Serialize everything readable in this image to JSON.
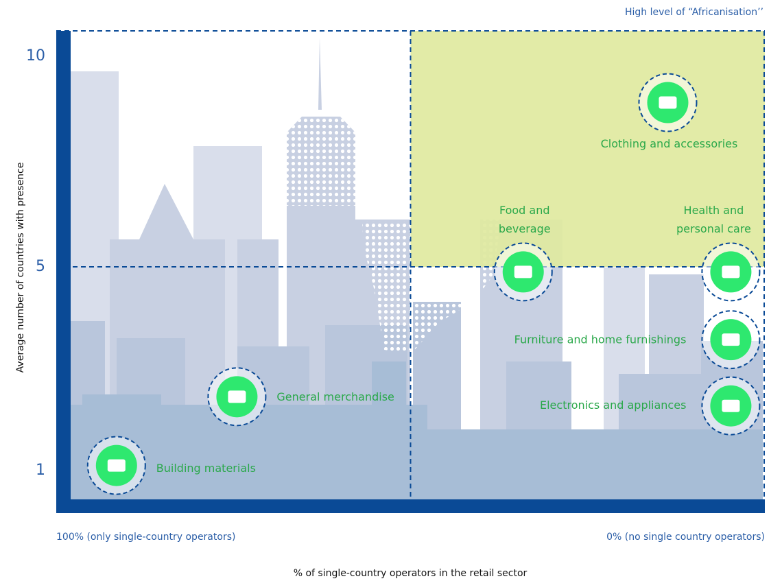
{
  "chart_data": {
    "type": "scatter",
    "annotation": "High level of “Africanisation’’",
    "y_label": "Average number of countries with presence",
    "x_label": "% of single-country operators in the retail sector",
    "xlim": [
      100,
      0
    ],
    "xticks": [
      {
        "value": 100,
        "label": "100% (only single-country operators)"
      },
      {
        "value": 0,
        "label": "0% (no single country operators)"
      }
    ],
    "ylim": [
      0,
      11
    ],
    "yticks": [
      1,
      5,
      10
    ],
    "dividers": {
      "x": 50,
      "y": 5
    },
    "highlight_color": "#dfe9a0",
    "point_color": "#2ee86f",
    "label_color": "#2aa84a",
    "points": [
      {
        "label": [
          "Building materials"
        ],
        "x": 91.5,
        "y": 1.1
      },
      {
        "label": [
          "General merchandise"
        ],
        "x": 74.5,
        "y": 2.45
      },
      {
        "label": [
          "Food and",
          "beverage"
        ],
        "x": 34.1,
        "y": 4.9
      },
      {
        "label": [
          "Clothing and accessories"
        ],
        "x": 13.7,
        "y": 8.9
      },
      {
        "label": [
          "Health and",
          "personal care"
        ],
        "x": 4.8,
        "y": 4.9
      },
      {
        "label": [
          "Furniture and home furnishings"
        ],
        "x": 4.8,
        "y": 3.57
      },
      {
        "label": [
          "Electronics and appliances"
        ],
        "x": 4.8,
        "y": 2.27
      }
    ]
  }
}
